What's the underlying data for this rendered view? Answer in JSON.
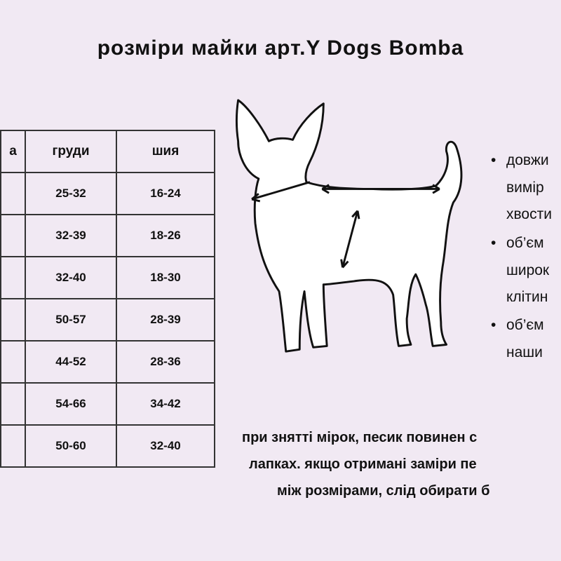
{
  "title": "розміри майки арт.Y Dogs Bomba",
  "table": {
    "headers": [
      "а",
      "груди",
      "шия"
    ],
    "rows": [
      [
        "",
        "25-32",
        "16-24"
      ],
      [
        "",
        "32-39",
        "18-26"
      ],
      [
        "",
        "32-40",
        "18-30"
      ],
      [
        "",
        "50-57",
        "28-39"
      ],
      [
        "",
        "44-52",
        "28-36"
      ],
      [
        "",
        "54-66",
        "34-42"
      ],
      [
        "",
        "50-60",
        "32-40"
      ]
    ]
  },
  "bullets": [
    {
      "lines": [
        "довжи",
        "вимір",
        "хвости"
      ]
    },
    {
      "lines": [
        "об’єм",
        "широк",
        "клітин"
      ]
    },
    {
      "lines": [
        "об’єм",
        "наши"
      ]
    }
  ],
  "note": [
    "при знятті мірок, песик повинен с",
    "лапках. якщо отримані заміри пе",
    "між розмірами, слід обирати б"
  ]
}
